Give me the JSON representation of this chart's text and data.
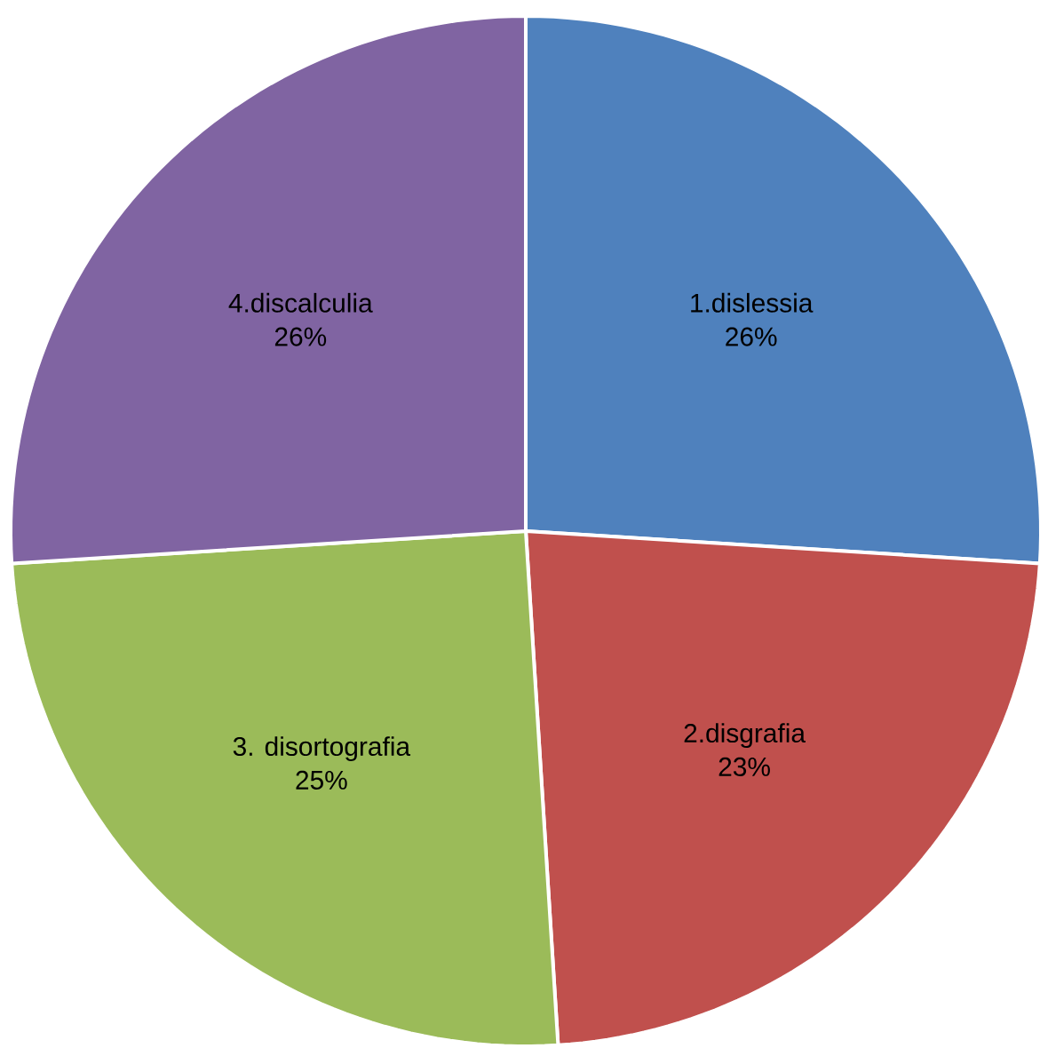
{
  "chart_data": {
    "type": "pie",
    "categories": [
      "1.dislessia",
      "2.disgrafia",
      "3. disortografia",
      "4.discalculia"
    ],
    "values": [
      26,
      23,
      25,
      26
    ],
    "value_labels": [
      "26%",
      "23%",
      "25%",
      "26%"
    ],
    "colors": [
      "#4f81bd",
      "#c0504d",
      "#9bbb59",
      "#8064a2"
    ],
    "legend": false
  }
}
